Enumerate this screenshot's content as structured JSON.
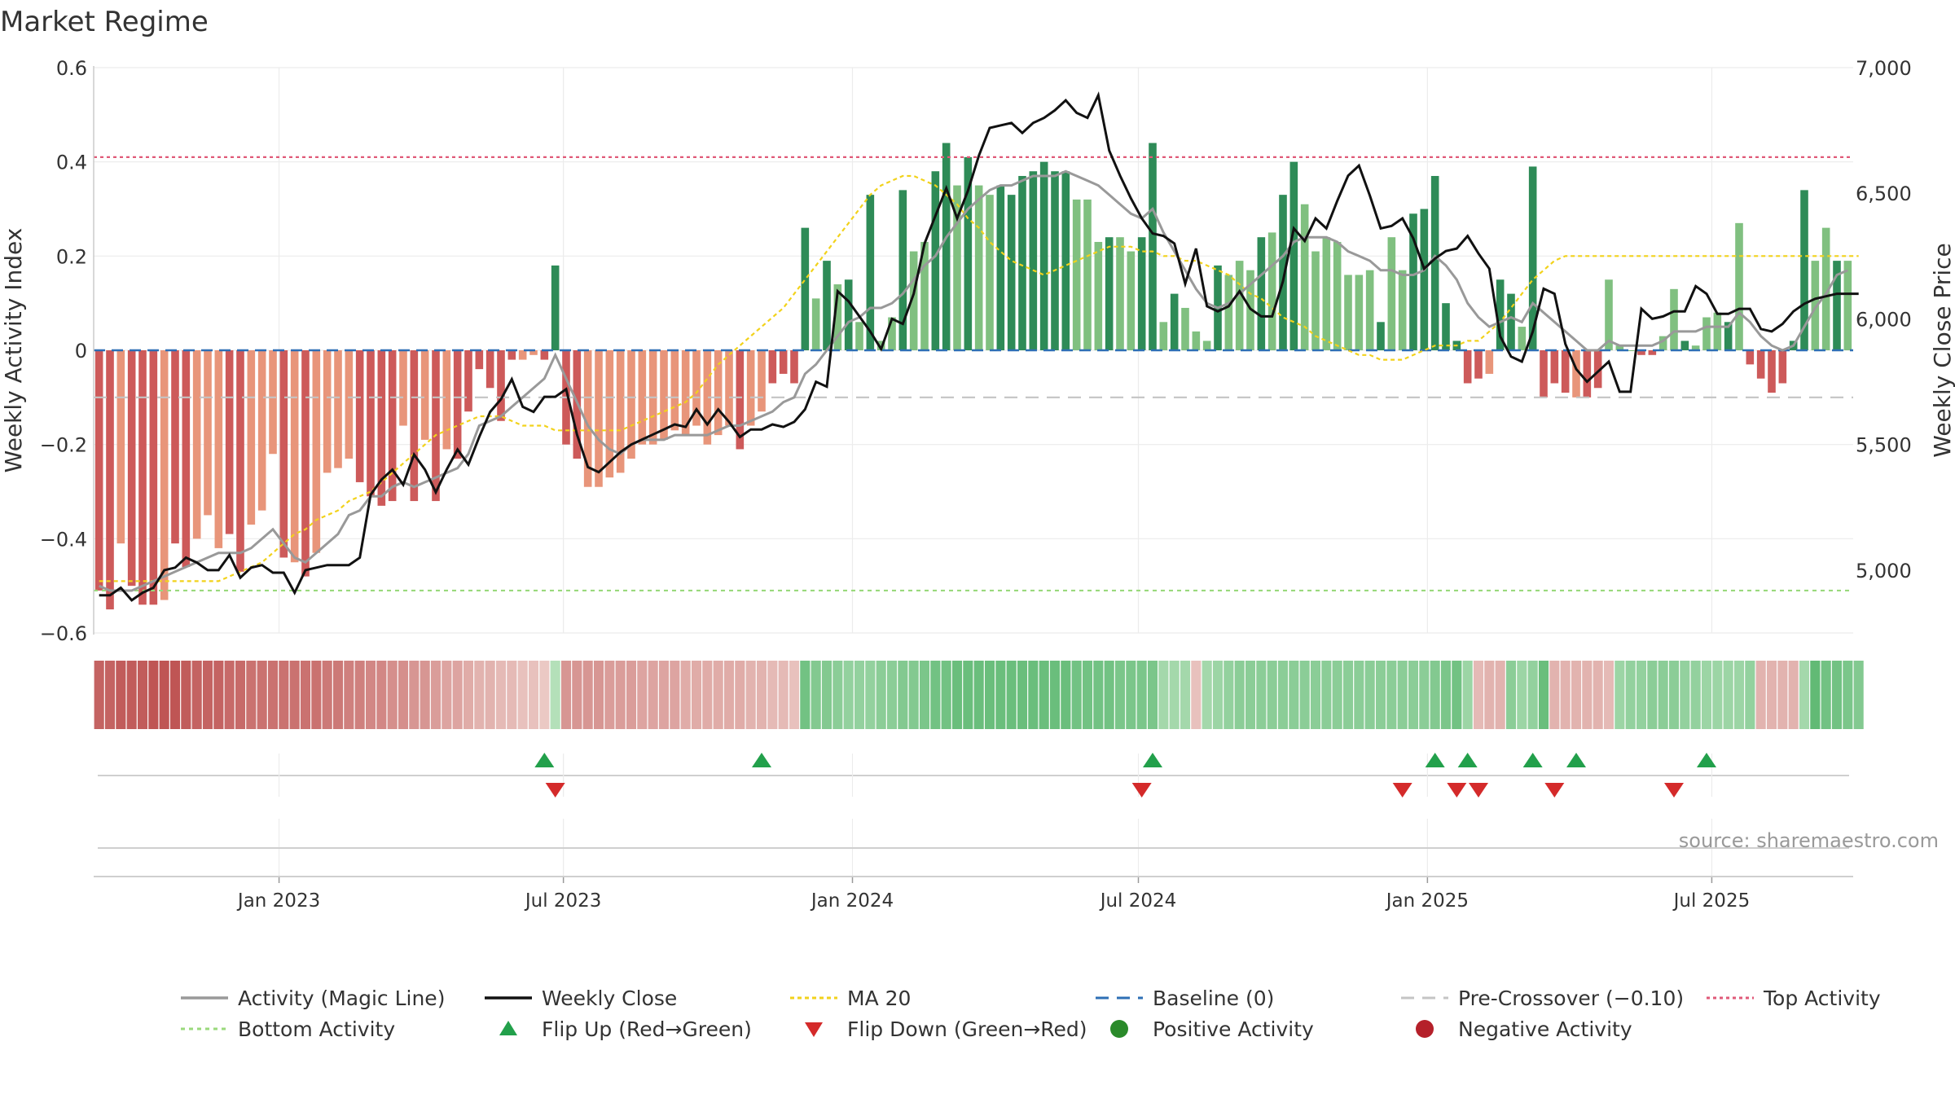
{
  "title": "Market Regime",
  "source_note": "source: sharemaestro.com",
  "colors": {
    "text": "#333333",
    "grid": "#ececec",
    "activity_line": "#999999",
    "weekly_close": "#111111",
    "ma20": "#f2d21b",
    "baseline": "#2e6fb5",
    "pre_crossover": "#c4c4c4",
    "top_activity": "#e05a78",
    "bottom_activity": "#9ad97c",
    "flip_up": "#22a04b",
    "flip_down": "#d42a2a",
    "positive": "#2a8a2a",
    "negative": "#b5202a",
    "red_strong": "#cd5a5a",
    "red_light": "#e8957a",
    "green_strong": "#2e8b57",
    "green_light": "#80c080"
  },
  "chart_data": {
    "type": "bar",
    "title": "Market Regime",
    "x_start": "2022-09-05",
    "x_end": "2025-09-29",
    "x_ticks": [
      "Jan 2023",
      "Jul 2023",
      "Jan 2024",
      "Jul 2024",
      "Jan 2025",
      "Jul 2025"
    ],
    "x_tick_dates": [
      "2023-01-01",
      "2023-07-01",
      "2024-01-01",
      "2024-07-01",
      "2025-01-01",
      "2025-07-01"
    ],
    "left_axis": {
      "label": "Weekly Activity Index",
      "range": [
        -0.6,
        0.6
      ],
      "ticks": [
        0.6,
        0.4,
        0.2,
        0,
        -0.2,
        -0.4,
        -0.6
      ],
      "tick_labels": [
        "0.6",
        "0.4",
        "0.2",
        "0",
        "−0.2",
        "−0.4",
        "−0.6"
      ]
    },
    "right_axis": {
      "label": "Weekly Close Price",
      "range": [
        4750,
        7000
      ],
      "ticks": [
        7000,
        6500,
        6000,
        5500,
        5000
      ],
      "tick_labels": [
        "7,000",
        "6,500",
        "6,000",
        "5,500",
        "5,000"
      ]
    },
    "reference_lines": {
      "baseline": 0,
      "pre_crossover": -0.1,
      "top_activity": 0.41,
      "bottom_activity": -0.51
    },
    "activity_index": [
      -0.51,
      -0.55,
      -0.41,
      -0.5,
      -0.54,
      -0.54,
      -0.53,
      -0.41,
      -0.46,
      -0.4,
      -0.35,
      -0.42,
      -0.39,
      -0.47,
      -0.37,
      -0.34,
      -0.22,
      -0.44,
      -0.45,
      -0.48,
      -0.43,
      -0.26,
      -0.25,
      -0.23,
      -0.28,
      -0.31,
      -0.33,
      -0.32,
      -0.16,
      -0.32,
      -0.19,
      -0.32,
      -0.21,
      -0.23,
      -0.13,
      -0.04,
      -0.08,
      -0.15,
      -0.02,
      -0.02,
      -0.01,
      -0.02,
      0.18,
      -0.2,
      -0.23,
      -0.29,
      -0.29,
      -0.27,
      -0.26,
      -0.23,
      -0.2,
      -0.2,
      -0.19,
      -0.17,
      -0.18,
      -0.16,
      -0.2,
      -0.18,
      -0.16,
      -0.21,
      -0.16,
      -0.13,
      -0.07,
      -0.05,
      -0.07,
      0.26,
      0.11,
      0.19,
      0.14,
      0.15,
      0.06,
      0.33,
      0.02,
      0.07,
      0.34,
      0.21,
      0.23,
      0.38,
      0.44,
      0.35,
      0.41,
      0.35,
      0.33,
      0.35,
      0.33,
      0.37,
      0.38,
      0.4,
      0.38,
      0.38,
      0.32,
      0.32,
      0.23,
      0.24,
      0.24,
      0.21,
      0.24,
      0.44,
      0.06,
      0.12,
      0.09,
      0.04,
      0.02,
      0.18,
      0.16,
      0.19,
      0.17,
      0.24,
      0.25,
      0.33,
      0.4,
      0.31,
      0.21,
      0.24,
      0.23,
      0.16,
      0.16,
      0.17,
      0.06,
      0.24,
      0.17,
      0.29,
      0.3,
      0.37,
      0.1,
      0.02,
      -0.07,
      -0.06,
      -0.05,
      0.15,
      0.12,
      0.05,
      0.39,
      -0.1,
      -0.07,
      -0.09,
      -0.1,
      -0.1,
      -0.08,
      0.15,
      0.01,
      0.0,
      -0.01,
      -0.01,
      0.03,
      0.13,
      0.02,
      0.01,
      0.07,
      0.08,
      0.06,
      0.27,
      -0.03,
      -0.06,
      -0.09,
      -0.07,
      0.02,
      0.34,
      0.19,
      0.26,
      0.19,
      0.19
    ],
    "bar_shade": [
      "strong",
      "strong",
      "light",
      "strong",
      "strong",
      "strong",
      "light",
      "strong",
      "strong",
      "light",
      "light",
      "light",
      "strong",
      "strong",
      "light",
      "light",
      "light",
      "strong",
      "light",
      "strong",
      "light",
      "light",
      "light",
      "light",
      "strong",
      "strong",
      "strong",
      "strong",
      "light",
      "strong",
      "light",
      "strong",
      "light",
      "strong",
      "strong",
      "strong",
      "strong",
      "strong",
      "strong",
      "light",
      "light",
      "strong",
      "strong",
      "strong",
      "strong",
      "light",
      "light",
      "light",
      "light",
      "light",
      "light",
      "light",
      "light",
      "light",
      "light",
      "light",
      "light",
      "light",
      "light",
      "strong",
      "light",
      "light",
      "strong",
      "strong",
      "strong",
      "strong",
      "light",
      "strong",
      "light",
      "strong",
      "light",
      "strong",
      "light",
      "light",
      "strong",
      "light",
      "light",
      "strong",
      "strong",
      "light",
      "strong",
      "light",
      "light",
      "strong",
      "strong",
      "strong",
      "strong",
      "strong",
      "strong",
      "strong",
      "light",
      "light",
      "light",
      "strong",
      "light",
      "light",
      "strong",
      "strong",
      "light",
      "strong",
      "light",
      "light",
      "light",
      "strong",
      "light",
      "light",
      "light",
      "strong",
      "light",
      "strong",
      "strong",
      "light",
      "light",
      "light",
      "light",
      "light",
      "light",
      "light",
      "strong",
      "light",
      "light",
      "strong",
      "strong",
      "strong",
      "strong",
      "strong",
      "strong",
      "strong",
      "light",
      "strong",
      "strong",
      "light",
      "strong",
      "strong",
      "strong",
      "strong",
      "light",
      "strong",
      "strong",
      "light",
      "light",
      "light",
      "strong",
      "strong",
      "light",
      "light",
      "strong",
      "light",
      "light",
      "light",
      "strong",
      "light",
      "strong",
      "strong",
      "strong",
      "strong",
      "strong",
      "strong",
      "light",
      "light",
      "strong",
      "light",
      "light"
    ],
    "activity_magic_line": [
      -0.5,
      -0.51,
      -0.51,
      -0.51,
      -0.5,
      -0.49,
      -0.48,
      -0.47,
      -0.46,
      -0.45,
      -0.44,
      -0.43,
      -0.43,
      -0.43,
      -0.42,
      -0.4,
      -0.38,
      -0.41,
      -0.44,
      -0.45,
      -0.43,
      -0.41,
      -0.39,
      -0.35,
      -0.34,
      -0.31,
      -0.31,
      -0.29,
      -0.28,
      -0.29,
      -0.28,
      -0.27,
      -0.26,
      -0.25,
      -0.22,
      -0.16,
      -0.15,
      -0.14,
      -0.12,
      -0.1,
      -0.08,
      -0.06,
      -0.01,
      -0.06,
      -0.11,
      -0.16,
      -0.19,
      -0.21,
      -0.22,
      -0.2,
      -0.19,
      -0.19,
      -0.19,
      -0.18,
      -0.18,
      -0.18,
      -0.18,
      -0.17,
      -0.16,
      -0.16,
      -0.15,
      -0.14,
      -0.13,
      -0.11,
      -0.1,
      -0.05,
      -0.03,
      0.0,
      0.03,
      0.06,
      0.07,
      0.09,
      0.09,
      0.1,
      0.12,
      0.15,
      0.18,
      0.2,
      0.24,
      0.27,
      0.3,
      0.32,
      0.34,
      0.35,
      0.35,
      0.36,
      0.37,
      0.37,
      0.37,
      0.38,
      0.37,
      0.36,
      0.35,
      0.33,
      0.31,
      0.29,
      0.28,
      0.3,
      0.25,
      0.21,
      0.17,
      0.13,
      0.1,
      0.09,
      0.1,
      0.12,
      0.14,
      0.16,
      0.18,
      0.2,
      0.23,
      0.24,
      0.24,
      0.24,
      0.23,
      0.21,
      0.2,
      0.19,
      0.17,
      0.17,
      0.16,
      0.16,
      0.17,
      0.2,
      0.18,
      0.15,
      0.1,
      0.07,
      0.05,
      0.06,
      0.07,
      0.06,
      0.1,
      0.08,
      0.06,
      0.04,
      0.02,
      0.0,
      0.0,
      0.02,
      0.01,
      0.01,
      0.01,
      0.01,
      0.02,
      0.04,
      0.04,
      0.04,
      0.05,
      0.05,
      0.05,
      0.08,
      0.06,
      0.03,
      0.01,
      0.0,
      0.01,
      0.05,
      0.09,
      0.12,
      0.16,
      0.17
    ],
    "weekly_close": [
      4900,
      4900,
      4930,
      4880,
      4910,
      4930,
      5000,
      5010,
      5050,
      5030,
      5000,
      5000,
      5060,
      4970,
      5010,
      5020,
      4990,
      4990,
      4910,
      5000,
      5010,
      5020,
      5020,
      5020,
      5050,
      5300,
      5360,
      5400,
      5340,
      5460,
      5400,
      5310,
      5400,
      5480,
      5420,
      5530,
      5630,
      5680,
      5760,
      5650,
      5630,
      5690,
      5690,
      5720,
      5540,
      5410,
      5390,
      5430,
      5470,
      5500,
      5520,
      5540,
      5560,
      5580,
      5570,
      5640,
      5580,
      5640,
      5590,
      5530,
      5560,
      5560,
      5580,
      5570,
      5590,
      5640,
      5750,
      5730,
      6110,
      6070,
      6010,
      5950,
      5880,
      6000,
      5980,
      6100,
      6300,
      6410,
      6520,
      6400,
      6510,
      6650,
      6760,
      6770,
      6780,
      6740,
      6780,
      6800,
      6830,
      6870,
      6820,
      6800,
      6890,
      6670,
      6570,
      6480,
      6400,
      6340,
      6330,
      6300,
      6140,
      6280,
      6050,
      6030,
      6050,
      6110,
      6040,
      6010,
      6010,
      6150,
      6360,
      6310,
      6400,
      6360,
      6470,
      6570,
      6610,
      6490,
      6360,
      6370,
      6400,
      6320,
      6200,
      6240,
      6270,
      6280,
      6330,
      6260,
      6200,
      5930,
      5850,
      5830,
      5950,
      6120,
      6100,
      5900,
      5800,
      5750,
      5790,
      5830,
      5710,
      5710,
      6040,
      6000,
      6010,
      6030,
      6030,
      6130,
      6100,
      6020,
      6020,
      6040,
      6040,
      5960,
      5950,
      5980,
      6030,
      6060,
      6080,
      6090,
      6100,
      6100,
      6100
    ],
    "ma20": [
      -0.49,
      -0.49,
      -0.49,
      -0.49,
      -0.49,
      -0.49,
      -0.49,
      -0.49,
      -0.49,
      -0.49,
      -0.49,
      -0.49,
      -0.48,
      -0.47,
      -0.46,
      -0.45,
      -0.43,
      -0.41,
      -0.39,
      -0.38,
      -0.36,
      -0.35,
      -0.34,
      -0.32,
      -0.31,
      -0.3,
      -0.28,
      -0.26,
      -0.24,
      -0.22,
      -0.2,
      -0.18,
      -0.17,
      -0.16,
      -0.15,
      -0.14,
      -0.14,
      -0.14,
      -0.15,
      -0.16,
      -0.16,
      -0.16,
      -0.17,
      -0.17,
      -0.17,
      -0.17,
      -0.17,
      -0.17,
      -0.17,
      -0.16,
      -0.15,
      -0.14,
      -0.13,
      -0.12,
      -0.11,
      -0.09,
      -0.06,
      -0.03,
      -0.01,
      0.01,
      0.03,
      0.05,
      0.07,
      0.09,
      0.12,
      0.15,
      0.18,
      0.21,
      0.24,
      0.27,
      0.3,
      0.33,
      0.35,
      0.36,
      0.37,
      0.37,
      0.36,
      0.35,
      0.33,
      0.31,
      0.28,
      0.26,
      0.23,
      0.21,
      0.19,
      0.18,
      0.17,
      0.16,
      0.17,
      0.18,
      0.19,
      0.2,
      0.21,
      0.22,
      0.22,
      0.22,
      0.21,
      0.21,
      0.2,
      0.2,
      0.19,
      0.19,
      0.18,
      0.17,
      0.16,
      0.14,
      0.12,
      0.11,
      0.09,
      0.07,
      0.06,
      0.05,
      0.03,
      0.02,
      0.01,
      0.0,
      -0.01,
      -0.01,
      -0.02,
      -0.02,
      -0.02,
      -0.01,
      0.0,
      0.01,
      0.01,
      0.01,
      0.02,
      0.02,
      0.04,
      0.06,
      0.09,
      0.12,
      0.15,
      0.17,
      0.19,
      0.2,
      0.2,
      0.2,
      0.2,
      0.2,
      0.2,
      0.2,
      0.2,
      0.2,
      0.2,
      0.2,
      0.2,
      0.2,
      0.2,
      0.2,
      0.2,
      0.2,
      0.2,
      0.2,
      0.2,
      0.2,
      0.2,
      0.2,
      0.2,
      0.2,
      0.2,
      0.2,
      0.2
    ],
    "regime_strip": [
      -0.8,
      -0.8,
      -0.85,
      -0.85,
      -0.85,
      -0.9,
      -0.9,
      -0.9,
      -0.85,
      -0.8,
      -0.8,
      -0.8,
      -0.75,
      -0.75,
      -0.7,
      -0.7,
      -0.7,
      -0.7,
      -0.7,
      -0.7,
      -0.7,
      -0.65,
      -0.65,
      -0.6,
      -0.6,
      -0.55,
      -0.55,
      -0.5,
      -0.5,
      -0.45,
      -0.45,
      -0.4,
      -0.35,
      -0.35,
      -0.3,
      -0.25,
      -0.25,
      -0.2,
      -0.2,
      -0.15,
      -0.15,
      -0.1,
      0.15,
      -0.45,
      -0.45,
      -0.45,
      -0.45,
      -0.4,
      -0.4,
      -0.4,
      -0.35,
      -0.35,
      -0.35,
      -0.35,
      -0.3,
      -0.3,
      -0.3,
      -0.3,
      -0.3,
      -0.3,
      -0.25,
      -0.25,
      -0.2,
      -0.2,
      -0.15,
      0.55,
      0.45,
      0.45,
      0.4,
      0.35,
      0.35,
      0.35,
      0.4,
      0.4,
      0.45,
      0.45,
      0.5,
      0.55,
      0.55,
      0.6,
      0.6,
      0.6,
      0.6,
      0.6,
      0.6,
      0.6,
      0.6,
      0.6,
      0.6,
      0.6,
      0.55,
      0.55,
      0.55,
      0.55,
      0.5,
      0.5,
      0.5,
      0.5,
      0.25,
      0.25,
      0.25,
      -0.15,
      0.25,
      0.3,
      0.35,
      0.4,
      0.4,
      0.4,
      0.4,
      0.4,
      0.4,
      0.4,
      0.4,
      0.4,
      0.4,
      0.4,
      0.4,
      0.4,
      0.4,
      0.4,
      0.4,
      0.4,
      0.4,
      0.45,
      0.5,
      0.55,
      0.3,
      -0.2,
      -0.25,
      -0.25,
      0.4,
      0.3,
      0.35,
      0.6,
      -0.25,
      -0.25,
      -0.25,
      -0.25,
      -0.25,
      -0.2,
      0.3,
      0.35,
      0.35,
      0.4,
      0.4,
      0.4,
      0.35,
      0.35,
      0.3,
      0.3,
      0.3,
      0.3,
      0.35,
      -0.25,
      -0.25,
      -0.25,
      -0.25,
      0.25,
      0.65,
      0.55,
      0.55,
      0.5,
      0.45
    ],
    "flip_up_weeks": [
      41,
      61,
      97,
      123,
      126,
      132,
      136,
      148
    ],
    "flip_down_weeks": [
      42,
      96,
      120,
      125,
      127,
      134,
      145
    ],
    "legend": [
      {
        "key": "activity_line",
        "label": "Activity (Magic Line)"
      },
      {
        "key": "weekly_close",
        "label": "Weekly Close"
      },
      {
        "key": "ma20",
        "label": "MA 20"
      },
      {
        "key": "baseline",
        "label": "Baseline (0)"
      },
      {
        "key": "pre_crossover",
        "label": "Pre-Crossover (−0.10)"
      },
      {
        "key": "top_activity",
        "label": "Top Activity"
      },
      {
        "key": "bottom_activity",
        "label": "Bottom Activity"
      },
      {
        "key": "flip_up",
        "label": "Flip Up (Red→Green)"
      },
      {
        "key": "flip_down",
        "label": "Flip Down (Green→Red)"
      },
      {
        "key": "positive",
        "label": "Positive Activity"
      },
      {
        "key": "negative",
        "label": "Negative Activity"
      }
    ]
  }
}
